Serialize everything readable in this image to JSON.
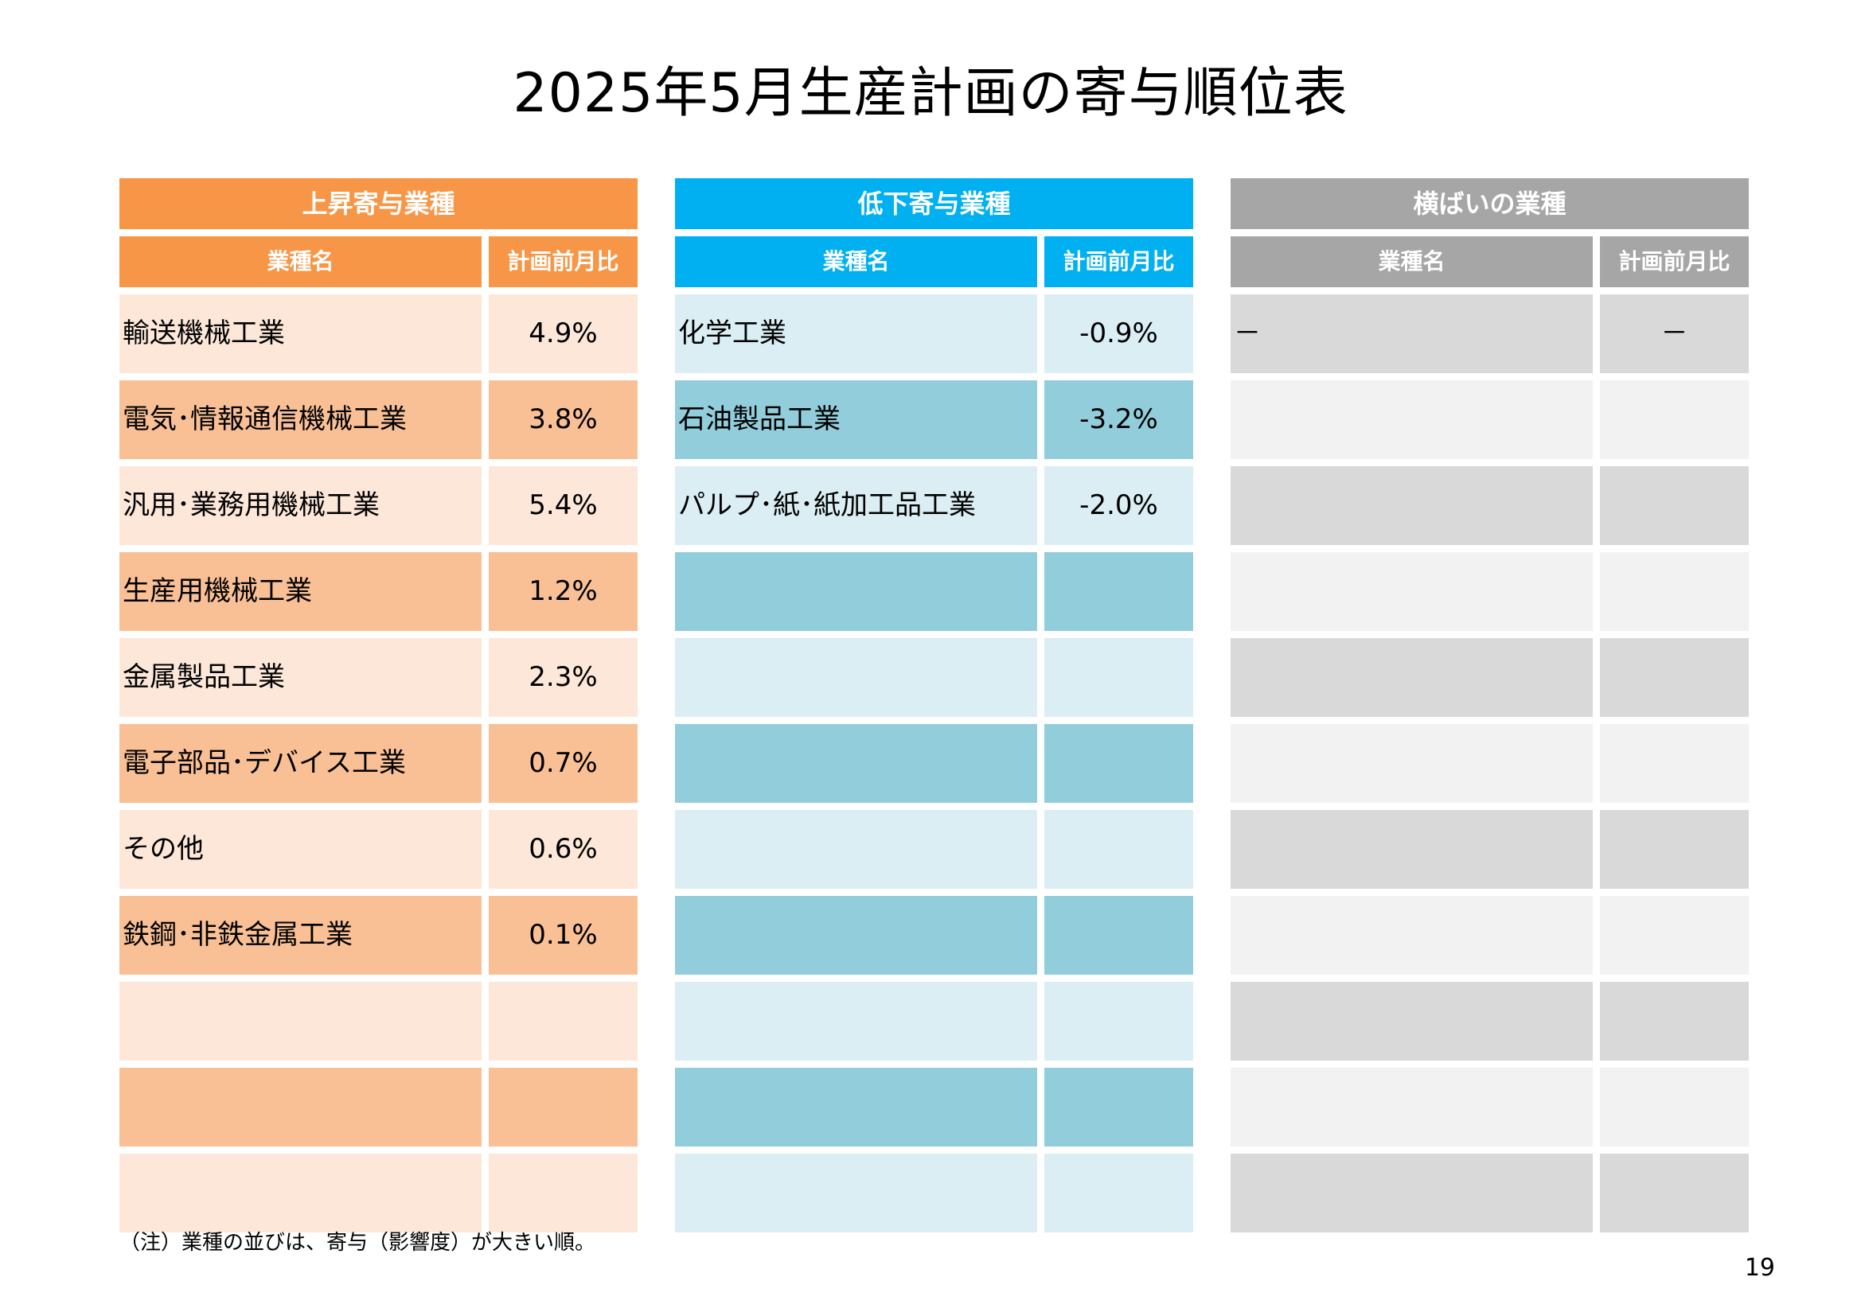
{
  "title": "2025年5月生産計画の寄与順位表",
  "panels": [
    {
      "id": "up",
      "header": "上昇寄与業種",
      "col_name": "業種名",
      "col_value": "計画前月比",
      "colors": {
        "header": "#F79646",
        "row_odd": "#FCE7D9",
        "row_even": "#F9C096"
      },
      "rows": [
        {
          "name": "輸送機械工業",
          "value": "4.9%"
        },
        {
          "name": "電気･情報通信機械工業",
          "value": "3.8%"
        },
        {
          "name": "汎用･業務用機械工業",
          "value": "5.4%"
        },
        {
          "name": "生産用機械工業",
          "value": "1.2%"
        },
        {
          "name": "金属製品工業",
          "value": "2.3%"
        },
        {
          "name": "電子部品･デバイス工業",
          "value": "0.7%"
        },
        {
          "name": "その他",
          "value": "0.6%"
        },
        {
          "name": "鉄鋼･非鉄金属工業",
          "value": "0.1%"
        },
        {
          "name": "",
          "value": ""
        },
        {
          "name": "",
          "value": ""
        },
        {
          "name": "",
          "value": ""
        }
      ]
    },
    {
      "id": "down",
      "header": "低下寄与業種",
      "col_name": "業種名",
      "col_value": "計画前月比",
      "colors": {
        "header": "#00B0F0",
        "row_odd": "#DAEEF3",
        "row_even": "#92CDDC"
      },
      "rows": [
        {
          "name": "化学工業",
          "value": "-0.9%"
        },
        {
          "name": "石油製品工業",
          "value": "-3.2%"
        },
        {
          "name": "パルプ･紙･紙加工品工業",
          "value": "-2.0%"
        },
        {
          "name": "",
          "value": ""
        },
        {
          "name": "",
          "value": ""
        },
        {
          "name": "",
          "value": ""
        },
        {
          "name": "",
          "value": ""
        },
        {
          "name": "",
          "value": ""
        },
        {
          "name": "",
          "value": ""
        },
        {
          "name": "",
          "value": ""
        },
        {
          "name": "",
          "value": ""
        }
      ]
    },
    {
      "id": "flat",
      "header": "横ばいの業種",
      "col_name": "業種名",
      "col_value": "計画前月比",
      "colors": {
        "header": "#A6A6A6",
        "row_odd": "#D9D9D9",
        "row_even": "#F2F2F2"
      },
      "rows": [
        {
          "name": "－",
          "value": "－"
        },
        {
          "name": "",
          "value": ""
        },
        {
          "name": "",
          "value": ""
        },
        {
          "name": "",
          "value": ""
        },
        {
          "name": "",
          "value": ""
        },
        {
          "name": "",
          "value": ""
        },
        {
          "name": "",
          "value": ""
        },
        {
          "name": "",
          "value": ""
        },
        {
          "name": "",
          "value": ""
        },
        {
          "name": "",
          "value": ""
        },
        {
          "name": "",
          "value": ""
        }
      ]
    }
  ],
  "note": "（注）業種の並びは、寄与（影響度）が大きい順。",
  "page_number": "19"
}
